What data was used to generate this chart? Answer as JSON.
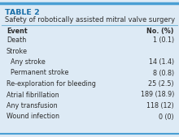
{
  "title_label": "TABLE 2",
  "title_sub": "Safety of robotically assisted mitral valve surgery",
  "col_headers": [
    "Event",
    "No. (%)"
  ],
  "rows": [
    {
      "label": "Death",
      "indent": 0,
      "value": "1 (0.1)"
    },
    {
      "label": "Stroke",
      "indent": 0,
      "value": ""
    },
    {
      "label": "  Any stroke",
      "indent": 0,
      "value": "14 (1.4)"
    },
    {
      "label": "  Permanent stroke",
      "indent": 0,
      "value": "8 (0.8)"
    },
    {
      "label": "Re-exploration for bleeding",
      "indent": 0,
      "value": "25 (2.5)"
    },
    {
      "label": "Atrial fibrillation",
      "indent": 0,
      "value": "189 (18.9)"
    },
    {
      "label": "Any transfusion",
      "indent": 0,
      "value": "118 (12)"
    },
    {
      "label": "Wound infection",
      "indent": 0,
      "value": "0 (0)"
    }
  ],
  "bg_color": "#ddeaf5",
  "title_label_color": "#1a6fa8",
  "subtitle_color": "#2c2c2c",
  "border_color_top": "#4a9fd4",
  "border_color_sub": "#7ab8d9",
  "border_color_bottom": "#4a9fd4",
  "text_color": "#2c2c2c",
  "header_text_color": "#2c2c2c",
  "font_size": 5.8,
  "title_font_size": 6.8,
  "subtitle_font_size": 6.0
}
